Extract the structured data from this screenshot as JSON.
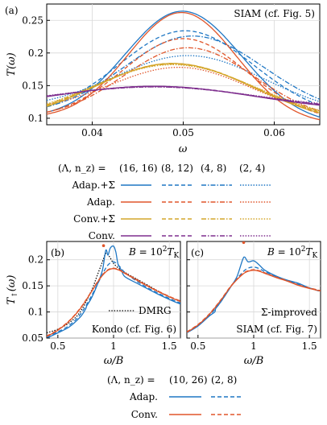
{
  "colors": {
    "blue": "#1f77c4",
    "orange": "#e0552a",
    "gold": "#d4a52a",
    "purple": "#7e2f8e",
    "black": "#000000"
  },
  "chart_data": [
    {
      "id": "a",
      "type": "line",
      "panel_label": "(a)",
      "annotation": "SIAM (cf. Fig. 5)",
      "xlabel": "ω",
      "ylabel": "T(ω)",
      "xlim": [
        0.035,
        0.065
      ],
      "ylim": [
        0.09,
        0.275
      ],
      "xticks": [
        0.04,
        0.05,
        0.06
      ],
      "xtick_labels": [
        "0.04",
        "0.05",
        "0.06"
      ],
      "yticks": [
        0.1,
        0.15,
        0.2,
        0.25
      ],
      "ytick_labels": [
        "0.1",
        "0.15",
        "0.2",
        "0.25"
      ],
      "grid": true,
      "series": [
        {
          "group": "Adap.+Σ",
          "params": "(16,16)",
          "color": "blue",
          "dash": "solid",
          "peak": [
            0.0499,
            0.264
          ],
          "left": 0.1,
          "right": 0.09,
          "width": 0.0062
        },
        {
          "group": "Adap.+Σ",
          "params": "(8,12)",
          "color": "blue",
          "dash": "dashed",
          "peak": [
            0.0502,
            0.234
          ],
          "left": 0.104,
          "right": 0.1,
          "width": 0.0072
        },
        {
          "group": "Adap.+Σ",
          "params": "(4,8)",
          "color": "blue",
          "dash": "dashdot",
          "peak": [
            0.051,
            0.226
          ],
          "left": 0.105,
          "right": 0.104,
          "width": 0.0075
        },
        {
          "group": "Adap.+Σ",
          "params": "(2,4)",
          "color": "blue",
          "dash": "dotted",
          "peak": [
            0.0505,
            0.196
          ],
          "left": 0.115,
          "right": 0.105,
          "width": 0.008
        },
        {
          "group": "Adap.",
          "params": "(16,16)",
          "color": "orange",
          "dash": "solid",
          "peak": [
            0.0498,
            0.262
          ],
          "left": 0.1,
          "right": 0.09,
          "width": 0.0058
        },
        {
          "group": "Adap.",
          "params": "(8,12)",
          "color": "orange",
          "dash": "dashed",
          "peak": [
            0.05,
            0.222
          ],
          "left": 0.1,
          "right": 0.095,
          "width": 0.0066
        },
        {
          "group": "Adap.",
          "params": "(4,8)",
          "color": "orange",
          "dash": "dashdot",
          "peak": [
            0.0505,
            0.208
          ],
          "left": 0.1,
          "right": 0.095,
          "width": 0.007
        },
        {
          "group": "Adap.",
          "params": "(2,4)",
          "color": "orange",
          "dash": "dotted",
          "peak": [
            0.0495,
            0.178
          ],
          "left": 0.11,
          "right": 0.1,
          "width": 0.0075
        },
        {
          "group": "Conv.+Σ",
          "params": "(16,16)",
          "color": "gold",
          "dash": "solid",
          "peak": [
            0.0488,
            0.184
          ],
          "left": 0.094,
          "right": 0.09,
          "width": 0.0085
        },
        {
          "group": "Conv.+Σ",
          "params": "(8,12)",
          "color": "gold",
          "dash": "dashed",
          "peak": [
            0.0488,
            0.184
          ],
          "left": 0.095,
          "right": 0.091,
          "width": 0.0086
        },
        {
          "group": "Conv.+Σ",
          "params": "(4,8)",
          "color": "gold",
          "dash": "dashdot",
          "peak": [
            0.0488,
            0.183
          ],
          "left": 0.096,
          "right": 0.092,
          "width": 0.0087
        },
        {
          "group": "Conv.+Σ",
          "params": "(2,4)",
          "color": "gold",
          "dash": "dotted",
          "peak": [
            0.0488,
            0.182
          ],
          "left": 0.097,
          "right": 0.093,
          "width": 0.0088
        },
        {
          "group": "Conv.",
          "params": "(16,16)",
          "color": "purple",
          "dash": "solid",
          "peak": [
            0.0468,
            0.149
          ],
          "left": 0.115,
          "right": 0.11,
          "width": 0.0105
        },
        {
          "group": "Conv.",
          "params": "(8,12)",
          "color": "purple",
          "dash": "dashed",
          "peak": [
            0.0468,
            0.149
          ],
          "left": 0.116,
          "right": 0.111,
          "width": 0.0106
        },
        {
          "group": "Conv.",
          "params": "(4,8)",
          "color": "purple",
          "dash": "dashdot",
          "peak": [
            0.0468,
            0.148
          ],
          "left": 0.117,
          "right": 0.112,
          "width": 0.0107
        },
        {
          "group": "Conv.",
          "params": "(2,4)",
          "color": "purple",
          "dash": "dotted",
          "peak": [
            0.0468,
            0.148
          ],
          "left": 0.118,
          "right": 0.113,
          "width": 0.0108
        }
      ]
    },
    {
      "id": "b",
      "type": "line",
      "panel_label": "(b)",
      "annotation": "B = 10²T_K",
      "note": "Kondo (cf. Fig. 6)",
      "dmrg_label": "DMRG",
      "xlabel": "ω/B",
      "ylabel": "T↑(ω)",
      "xlim": [
        0.4,
        1.6
      ],
      "ylim": [
        0.05,
        0.235
      ],
      "xticks": [
        0.5,
        1,
        1.5
      ],
      "xtick_labels": [
        "0.5",
        "1",
        "1.5"
      ],
      "yticks": [
        0.05,
        0.1,
        0.15,
        0.2
      ],
      "ytick_labels": [
        "0.05",
        "0.1",
        "0.15",
        "0.2"
      ],
      "grid": true,
      "marker": [
        0.91,
        0.227
      ],
      "series": [
        {
          "name": "DMRG",
          "color": "black",
          "dash": "dotted",
          "x": [
            0.4,
            0.5,
            0.6,
            0.7,
            0.8,
            0.85,
            0.9,
            0.93,
            0.96,
            1.0,
            1.05,
            1.1,
            1.2,
            1.3,
            1.4,
            1.5,
            1.6
          ],
          "y": [
            0.06,
            0.067,
            0.079,
            0.1,
            0.14,
            0.168,
            0.196,
            0.212,
            0.207,
            0.193,
            0.183,
            0.176,
            0.164,
            0.152,
            0.14,
            0.129,
            0.12
          ]
        },
        {
          "group": "Adap.",
          "params": "(10,26)",
          "color": "blue",
          "dash": "solid",
          "x": [
            0.4,
            0.5,
            0.6,
            0.7,
            0.75,
            0.76,
            0.8,
            0.85,
            0.9,
            0.93,
            0.95,
            0.97,
            1.0,
            1.02,
            1.04,
            1.07,
            1.1,
            1.2,
            1.3,
            1.4,
            1.5,
            1.6
          ],
          "y": [
            0.05,
            0.06,
            0.071,
            0.09,
            0.106,
            0.112,
            0.126,
            0.15,
            0.18,
            0.218,
            0.209,
            0.222,
            0.226,
            0.215,
            0.192,
            0.18,
            0.168,
            0.156,
            0.145,
            0.134,
            0.124,
            0.115
          ]
        },
        {
          "group": "Adap.",
          "params": "(2,8)",
          "color": "blue",
          "dash": "dashed",
          "x": [
            0.4,
            0.5,
            0.6,
            0.7,
            0.8,
            0.9,
            0.95,
            1.0,
            1.05,
            1.1,
            1.2,
            1.3,
            1.4,
            1.5,
            1.6
          ],
          "y": [
            0.052,
            0.062,
            0.074,
            0.095,
            0.13,
            0.172,
            0.19,
            0.196,
            0.188,
            0.176,
            0.16,
            0.147,
            0.136,
            0.126,
            0.117
          ]
        },
        {
          "group": "Conv.",
          "params": "(10,26)",
          "color": "orange",
          "dash": "solid",
          "x": [
            0.4,
            0.5,
            0.6,
            0.7,
            0.8,
            0.85,
            0.9,
            0.95,
            1.0,
            1.05,
            1.1,
            1.2,
            1.3,
            1.4,
            1.5,
            1.6
          ],
          "y": [
            0.053,
            0.065,
            0.082,
            0.106,
            0.138,
            0.155,
            0.17,
            0.18,
            0.183,
            0.18,
            0.174,
            0.162,
            0.15,
            0.139,
            0.129,
            0.12
          ]
        },
        {
          "group": "Conv.",
          "params": "(2,8)",
          "color": "orange",
          "dash": "dashed",
          "x": [
            0.4,
            0.5,
            0.6,
            0.7,
            0.8,
            0.85,
            0.9,
            0.95,
            1.0,
            1.05,
            1.1,
            1.2,
            1.3,
            1.4,
            1.5,
            1.6
          ],
          "y": [
            0.054,
            0.066,
            0.083,
            0.107,
            0.139,
            0.156,
            0.171,
            0.181,
            0.184,
            0.181,
            0.175,
            0.163,
            0.151,
            0.14,
            0.13,
            0.121
          ]
        }
      ]
    },
    {
      "id": "c",
      "type": "line",
      "panel_label": "(c)",
      "annotation": "B = 10²T_K",
      "note_line1": "Σ-improved",
      "note_line2": "SIAM (cf. Fig. 7)",
      "xlabel": "ω/B",
      "xlim": [
        0.4,
        1.6
      ],
      "ylim": [
        0.05,
        0.235
      ],
      "xticks": [
        0.5,
        1,
        1.5
      ],
      "xtick_labels": [
        "0.5",
        "1",
        "1.5"
      ],
      "yticks": [
        0.05,
        0.1,
        0.15,
        0.2
      ],
      "grid": true,
      "marker": [
        0.91,
        0.233
      ],
      "series": [
        {
          "group": "Adap.",
          "params": "(10,26)",
          "color": "blue",
          "dash": "solid",
          "x": [
            0.4,
            0.5,
            0.6,
            0.65,
            0.66,
            0.7,
            0.8,
            0.85,
            0.9,
            0.92,
            0.95,
            1.0,
            1.05,
            1.1,
            1.2,
            1.3,
            1.4,
            1.5,
            1.6
          ],
          "y": [
            0.06,
            0.073,
            0.092,
            0.1,
            0.107,
            0.118,
            0.15,
            0.168,
            0.2,
            0.205,
            0.196,
            0.198,
            0.19,
            0.18,
            0.169,
            0.161,
            0.155,
            0.146,
            0.14
          ]
        },
        {
          "group": "Adap.",
          "params": "(2,8)",
          "color": "blue",
          "dash": "dashed",
          "x": [
            0.4,
            0.5,
            0.6,
            0.7,
            0.8,
            0.9,
            0.95,
            1.0,
            1.05,
            1.1,
            1.2,
            1.3,
            1.4,
            1.5,
            1.6
          ],
          "y": [
            0.061,
            0.074,
            0.093,
            0.118,
            0.15,
            0.176,
            0.184,
            0.186,
            0.183,
            0.177,
            0.168,
            0.16,
            0.153,
            0.146,
            0.139
          ]
        },
        {
          "group": "Conv.",
          "params": "(10,26)",
          "color": "orange",
          "dash": "solid",
          "x": [
            0.4,
            0.5,
            0.6,
            0.7,
            0.8,
            0.9,
            0.95,
            1.0,
            1.05,
            1.1,
            1.2,
            1.3,
            1.4,
            1.5,
            1.6
          ],
          "y": [
            0.061,
            0.075,
            0.095,
            0.121,
            0.15,
            0.172,
            0.178,
            0.18,
            0.178,
            0.174,
            0.166,
            0.159,
            0.151,
            0.145,
            0.14
          ]
        },
        {
          "group": "Conv.",
          "params": "(2,8)",
          "color": "orange",
          "dash": "dashed",
          "x": [
            0.4,
            0.5,
            0.6,
            0.7,
            0.8,
            0.9,
            0.95,
            1.0,
            1.05,
            1.1,
            1.2,
            1.3,
            1.4,
            1.5,
            1.6
          ],
          "y": [
            0.062,
            0.076,
            0.096,
            0.122,
            0.151,
            0.173,
            0.179,
            0.181,
            0.179,
            0.175,
            0.167,
            0.16,
            0.152,
            0.146,
            0.141
          ]
        }
      ]
    }
  ],
  "legend_top": {
    "header": "(Λ, n_z) =",
    "columns": [
      "(16, 16)",
      "(8, 12)",
      "(4, 8)",
      "(2, 4)"
    ],
    "rows": [
      {
        "label": "Adap.+Σ",
        "color": "blue"
      },
      {
        "label": "Adap.",
        "color": "orange"
      },
      {
        "label": "Conv.+Σ",
        "color": "gold"
      },
      {
        "label": "Conv.",
        "color": "purple"
      }
    ]
  },
  "legend_bottom": {
    "header": "(Λ, n_z) =",
    "columns": [
      "(10, 26)",
      "(2, 8)"
    ],
    "rows": [
      {
        "label": "Adap.",
        "color": "blue"
      },
      {
        "label": "Conv.",
        "color": "orange"
      }
    ]
  }
}
